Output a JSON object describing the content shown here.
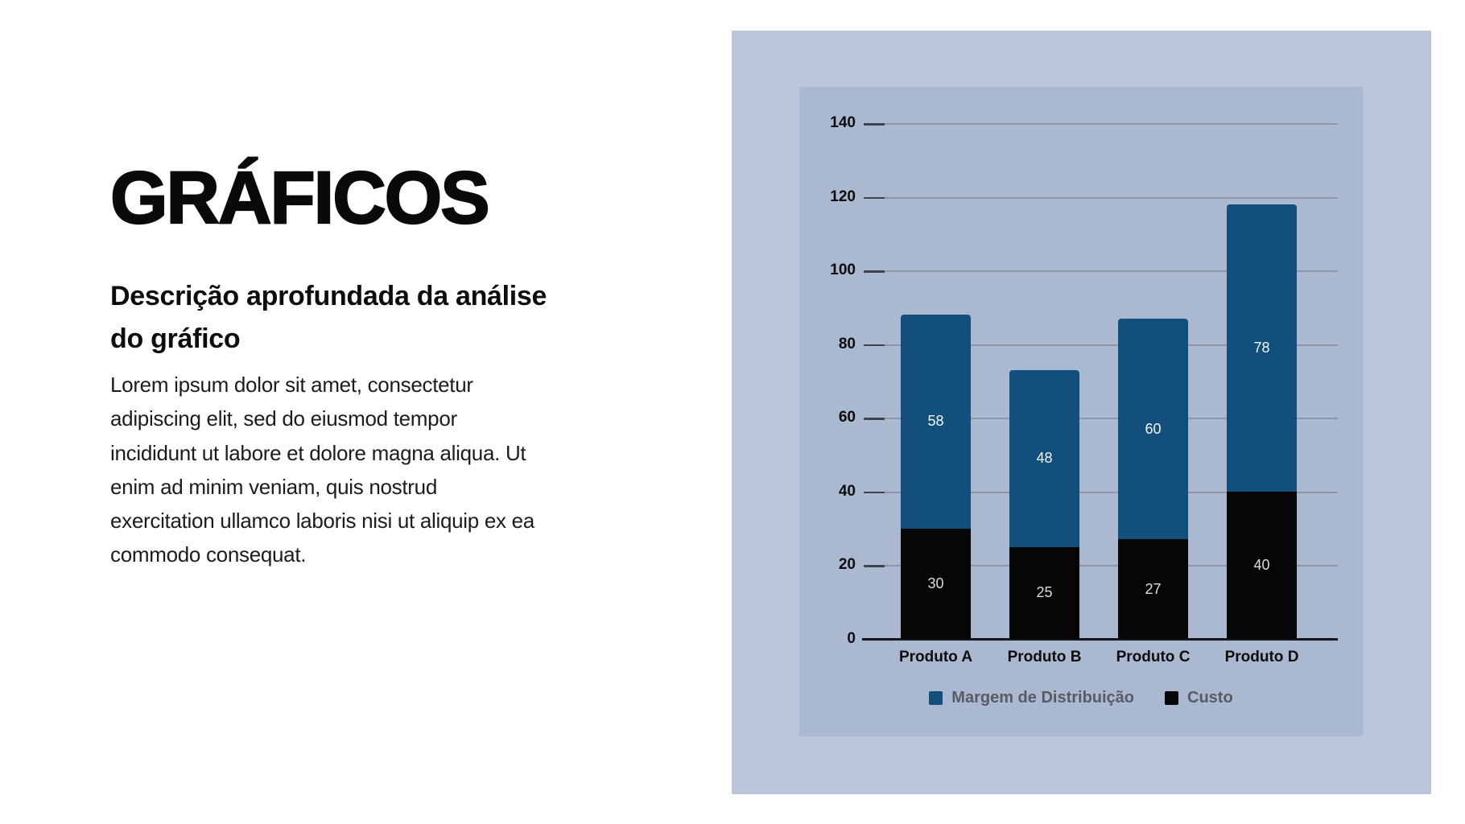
{
  "slide": {
    "title": "GRÁFICOS",
    "subtitle": "Descrição aprofundada da análise\ndo gráfico",
    "body": "Lorem ipsum dolor sit amet, consectetur\nadipiscing elit, sed do eiusmod tempor\nincididunt ut labore et dolore magna aliqua. Ut\nenim ad minim veniam, quis nostrud\nexercitation ullamco laboris nisi ut aliquip ex ea\ncommodo consequat."
  },
  "colors": {
    "page_background": "#ffffff",
    "panel_outer": "#bbc6da",
    "panel_inner": "#aab8d0",
    "gridline": "#8d96a8",
    "tick": "#3e4350",
    "axis": "#14161a",
    "axis_label": "#0d0d0d",
    "legend_text": "#565b66"
  },
  "chart_data": {
    "type": "bar",
    "stacked": true,
    "title": "",
    "xlabel": "",
    "ylabel": "",
    "categories": [
      "Produto A",
      "Produto B",
      "Produto C",
      "Produto D"
    ],
    "series": [
      {
        "name": "Custo",
        "color": "#060606",
        "label_color": "#dcdcdc",
        "values": [
          30,
          25,
          27,
          40
        ]
      },
      {
        "name": "Margem de Distribuição",
        "color": "#134f7d",
        "label_color": "#f2f6fa",
        "values": [
          58,
          48,
          60,
          78
        ]
      }
    ],
    "totals": [
      88,
      73,
      87,
      118
    ],
    "ylim": [
      0,
      140
    ],
    "yticks": [
      0,
      20,
      40,
      60,
      80,
      100,
      120,
      140
    ],
    "grid": true,
    "data_labels": true,
    "legend_position": "bottom",
    "legend": [
      {
        "label": "Margem de Distribuição",
        "color": "#134f7d"
      },
      {
        "label": "Custo",
        "color": "#060606"
      }
    ]
  }
}
